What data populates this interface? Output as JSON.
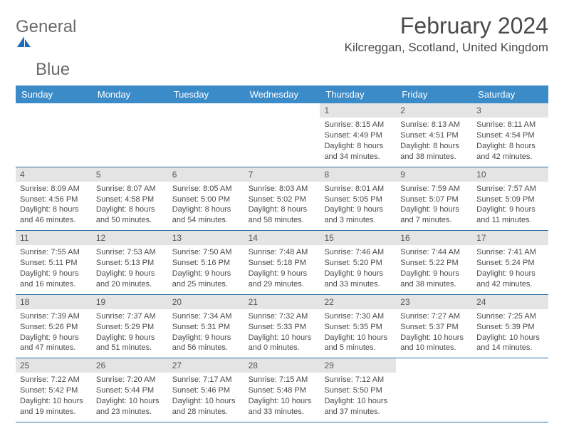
{
  "logo": {
    "word1": "General",
    "word2": "Blue"
  },
  "title": "February 2024",
  "location": "Kilcreggan, Scotland, United Kingdom",
  "colors": {
    "header_bg": "#3b8bc9",
    "header_text": "#ffffff",
    "daynum_bg": "#e4e4e4",
    "row_border": "#2f6ea5",
    "text": "#4a4a4a",
    "logo_gray": "#6a6a6a",
    "logo_blue": "#2b7bbf"
  },
  "day_headers": [
    "Sunday",
    "Monday",
    "Tuesday",
    "Wednesday",
    "Thursday",
    "Friday",
    "Saturday"
  ],
  "weeks": [
    [
      {
        "empty": true
      },
      {
        "empty": true
      },
      {
        "empty": true
      },
      {
        "empty": true
      },
      {
        "num": "1",
        "sunrise": "Sunrise: 8:15 AM",
        "sunset": "Sunset: 4:49 PM",
        "dl1": "Daylight: 8 hours",
        "dl2": "and 34 minutes."
      },
      {
        "num": "2",
        "sunrise": "Sunrise: 8:13 AM",
        "sunset": "Sunset: 4:51 PM",
        "dl1": "Daylight: 8 hours",
        "dl2": "and 38 minutes."
      },
      {
        "num": "3",
        "sunrise": "Sunrise: 8:11 AM",
        "sunset": "Sunset: 4:54 PM",
        "dl1": "Daylight: 8 hours",
        "dl2": "and 42 minutes."
      }
    ],
    [
      {
        "num": "4",
        "sunrise": "Sunrise: 8:09 AM",
        "sunset": "Sunset: 4:56 PM",
        "dl1": "Daylight: 8 hours",
        "dl2": "and 46 minutes."
      },
      {
        "num": "5",
        "sunrise": "Sunrise: 8:07 AM",
        "sunset": "Sunset: 4:58 PM",
        "dl1": "Daylight: 8 hours",
        "dl2": "and 50 minutes."
      },
      {
        "num": "6",
        "sunrise": "Sunrise: 8:05 AM",
        "sunset": "Sunset: 5:00 PM",
        "dl1": "Daylight: 8 hours",
        "dl2": "and 54 minutes."
      },
      {
        "num": "7",
        "sunrise": "Sunrise: 8:03 AM",
        "sunset": "Sunset: 5:02 PM",
        "dl1": "Daylight: 8 hours",
        "dl2": "and 58 minutes."
      },
      {
        "num": "8",
        "sunrise": "Sunrise: 8:01 AM",
        "sunset": "Sunset: 5:05 PM",
        "dl1": "Daylight: 9 hours",
        "dl2": "and 3 minutes."
      },
      {
        "num": "9",
        "sunrise": "Sunrise: 7:59 AM",
        "sunset": "Sunset: 5:07 PM",
        "dl1": "Daylight: 9 hours",
        "dl2": "and 7 minutes."
      },
      {
        "num": "10",
        "sunrise": "Sunrise: 7:57 AM",
        "sunset": "Sunset: 5:09 PM",
        "dl1": "Daylight: 9 hours",
        "dl2": "and 11 minutes."
      }
    ],
    [
      {
        "num": "11",
        "sunrise": "Sunrise: 7:55 AM",
        "sunset": "Sunset: 5:11 PM",
        "dl1": "Daylight: 9 hours",
        "dl2": "and 16 minutes."
      },
      {
        "num": "12",
        "sunrise": "Sunrise: 7:53 AM",
        "sunset": "Sunset: 5:13 PM",
        "dl1": "Daylight: 9 hours",
        "dl2": "and 20 minutes."
      },
      {
        "num": "13",
        "sunrise": "Sunrise: 7:50 AM",
        "sunset": "Sunset: 5:16 PM",
        "dl1": "Daylight: 9 hours",
        "dl2": "and 25 minutes."
      },
      {
        "num": "14",
        "sunrise": "Sunrise: 7:48 AM",
        "sunset": "Sunset: 5:18 PM",
        "dl1": "Daylight: 9 hours",
        "dl2": "and 29 minutes."
      },
      {
        "num": "15",
        "sunrise": "Sunrise: 7:46 AM",
        "sunset": "Sunset: 5:20 PM",
        "dl1": "Daylight: 9 hours",
        "dl2": "and 33 minutes."
      },
      {
        "num": "16",
        "sunrise": "Sunrise: 7:44 AM",
        "sunset": "Sunset: 5:22 PM",
        "dl1": "Daylight: 9 hours",
        "dl2": "and 38 minutes."
      },
      {
        "num": "17",
        "sunrise": "Sunrise: 7:41 AM",
        "sunset": "Sunset: 5:24 PM",
        "dl1": "Daylight: 9 hours",
        "dl2": "and 42 minutes."
      }
    ],
    [
      {
        "num": "18",
        "sunrise": "Sunrise: 7:39 AM",
        "sunset": "Sunset: 5:26 PM",
        "dl1": "Daylight: 9 hours",
        "dl2": "and 47 minutes."
      },
      {
        "num": "19",
        "sunrise": "Sunrise: 7:37 AM",
        "sunset": "Sunset: 5:29 PM",
        "dl1": "Daylight: 9 hours",
        "dl2": "and 51 minutes."
      },
      {
        "num": "20",
        "sunrise": "Sunrise: 7:34 AM",
        "sunset": "Sunset: 5:31 PM",
        "dl1": "Daylight: 9 hours",
        "dl2": "and 56 minutes."
      },
      {
        "num": "21",
        "sunrise": "Sunrise: 7:32 AM",
        "sunset": "Sunset: 5:33 PM",
        "dl1": "Daylight: 10 hours",
        "dl2": "and 0 minutes."
      },
      {
        "num": "22",
        "sunrise": "Sunrise: 7:30 AM",
        "sunset": "Sunset: 5:35 PM",
        "dl1": "Daylight: 10 hours",
        "dl2": "and 5 minutes."
      },
      {
        "num": "23",
        "sunrise": "Sunrise: 7:27 AM",
        "sunset": "Sunset: 5:37 PM",
        "dl1": "Daylight: 10 hours",
        "dl2": "and 10 minutes."
      },
      {
        "num": "24",
        "sunrise": "Sunrise: 7:25 AM",
        "sunset": "Sunset: 5:39 PM",
        "dl1": "Daylight: 10 hours",
        "dl2": "and 14 minutes."
      }
    ],
    [
      {
        "num": "25",
        "sunrise": "Sunrise: 7:22 AM",
        "sunset": "Sunset: 5:42 PM",
        "dl1": "Daylight: 10 hours",
        "dl2": "and 19 minutes."
      },
      {
        "num": "26",
        "sunrise": "Sunrise: 7:20 AM",
        "sunset": "Sunset: 5:44 PM",
        "dl1": "Daylight: 10 hours",
        "dl2": "and 23 minutes."
      },
      {
        "num": "27",
        "sunrise": "Sunrise: 7:17 AM",
        "sunset": "Sunset: 5:46 PM",
        "dl1": "Daylight: 10 hours",
        "dl2": "and 28 minutes."
      },
      {
        "num": "28",
        "sunrise": "Sunrise: 7:15 AM",
        "sunset": "Sunset: 5:48 PM",
        "dl1": "Daylight: 10 hours",
        "dl2": "and 33 minutes."
      },
      {
        "num": "29",
        "sunrise": "Sunrise: 7:12 AM",
        "sunset": "Sunset: 5:50 PM",
        "dl1": "Daylight: 10 hours",
        "dl2": "and 37 minutes."
      },
      {
        "empty": true
      },
      {
        "empty": true
      }
    ]
  ]
}
